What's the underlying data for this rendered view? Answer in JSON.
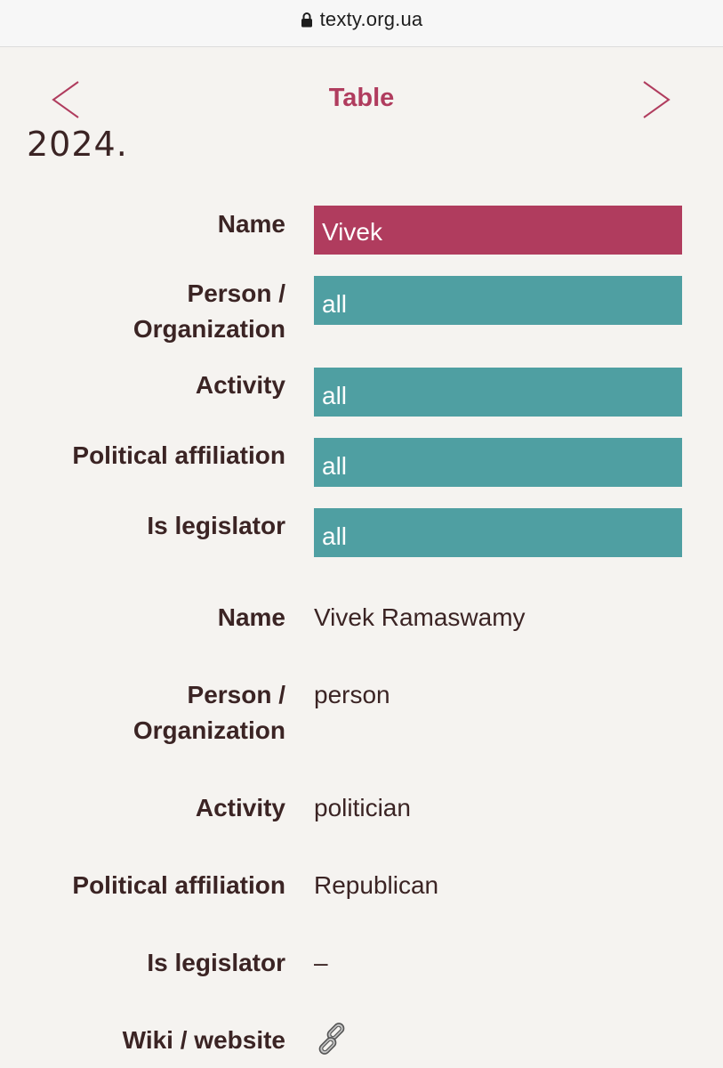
{
  "browser": {
    "url": "texty.org.ua",
    "lock_icon": "lock-icon"
  },
  "nav": {
    "title": "Table",
    "prev_icon": "chevron-left-icon",
    "next_icon": "chevron-right-icon"
  },
  "page": {
    "cut_text": "2024."
  },
  "filters": {
    "name": {
      "label": "Name",
      "value": "Vivek"
    },
    "person_org": {
      "label_line1": "Person /",
      "label_line2": "Organization",
      "value": "all"
    },
    "activity": {
      "label": "Activity",
      "value": "all"
    },
    "political": {
      "label": "Political affiliation",
      "value": "all"
    },
    "legislator": {
      "label": "Is legislator",
      "value": "all"
    }
  },
  "colors": {
    "accent": "#b03c5e",
    "filter_teal": "#4f9fa2",
    "text": "#3b2424",
    "background": "#f5f3f0"
  },
  "record": {
    "name": {
      "label": "Name",
      "value": "Vivek Ramaswamy"
    },
    "person_org": {
      "label_line1": "Person /",
      "label_line2": "Organization",
      "value": "person"
    },
    "activity": {
      "label": "Activity",
      "value": "politician"
    },
    "political": {
      "label": "Political affiliation",
      "value": "Republican"
    },
    "legislator": {
      "label": "Is legislator",
      "value": "–"
    },
    "wiki": {
      "label": "Wiki / website",
      "icon": "link-icon"
    }
  }
}
